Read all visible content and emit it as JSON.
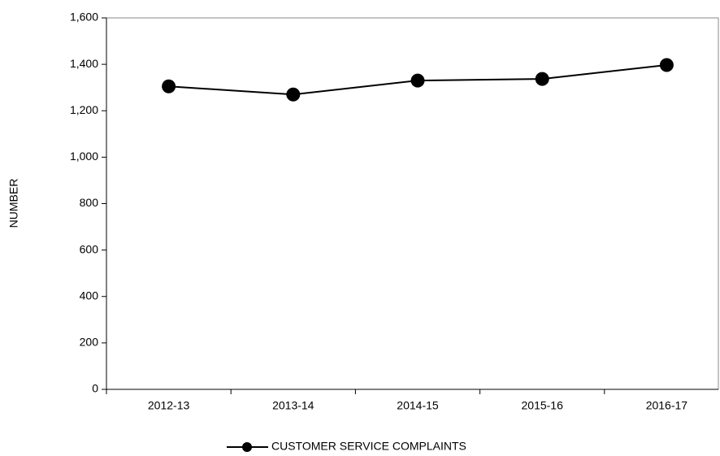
{
  "chart_data": {
    "type": "line",
    "categories": [
      "2012-13",
      "2013-14",
      "2014-15",
      "2015-16",
      "2016-17"
    ],
    "series": [
      {
        "name": "CUSTOMER SERVICE COMPLAINTS",
        "color": "#000000",
        "values": [
          1305,
          1270,
          1330,
          1337,
          1397
        ]
      }
    ],
    "y_label": "NUMBER",
    "ylim": [
      0,
      1600
    ],
    "yticks": [
      0,
      200,
      400,
      600,
      800,
      {
        "value": 1000,
        "label": "1,000"
      },
      {
        "value": 1200,
        "label": "1,200"
      },
      {
        "value": 1400,
        "label": "1,400"
      },
      {
        "value": 1600,
        "label": "1,600"
      }
    ],
    "grid": false,
    "legend": "bottom"
  }
}
